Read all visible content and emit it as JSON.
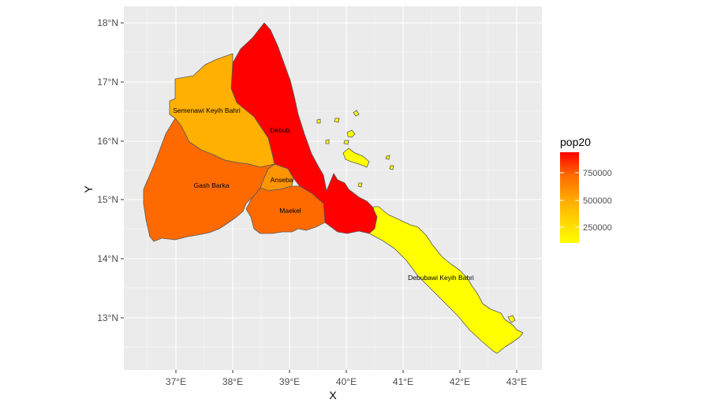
{
  "chart_data": {
    "type": "choropleth",
    "xlabel": "X",
    "ylabel": "Y",
    "x_ticks": [
      "37°E",
      "38°E",
      "39°E",
      "40°E",
      "41°E",
      "42°E",
      "43°E"
    ],
    "y_ticks": [
      "13°N",
      "14°N",
      "15°N",
      "16°N",
      "17°N",
      "18°N"
    ],
    "legend": {
      "title": "pop20",
      "ticks": [
        "750000",
        "500000",
        "250000"
      ],
      "color_low": "#FFFF00",
      "color_high": "#FF0000"
    },
    "regions": [
      {
        "name": "Semenawi Keyih Bahri",
        "color": "#FFB000"
      },
      {
        "name": "Debub",
        "color": "#FF0000"
      },
      {
        "name": "Anseba",
        "color": "#FF9500"
      },
      {
        "name": "Gash Barka",
        "color": "#FF6A00"
      },
      {
        "name": "Maekel",
        "color": "#FF6A00"
      },
      {
        "name": "Debubawi Keyih Bahri",
        "color": "#FFFF00"
      }
    ]
  },
  "colors": {
    "panel": "#EBEBEB",
    "grid": "#FFFFFF",
    "border": "#595959"
  }
}
